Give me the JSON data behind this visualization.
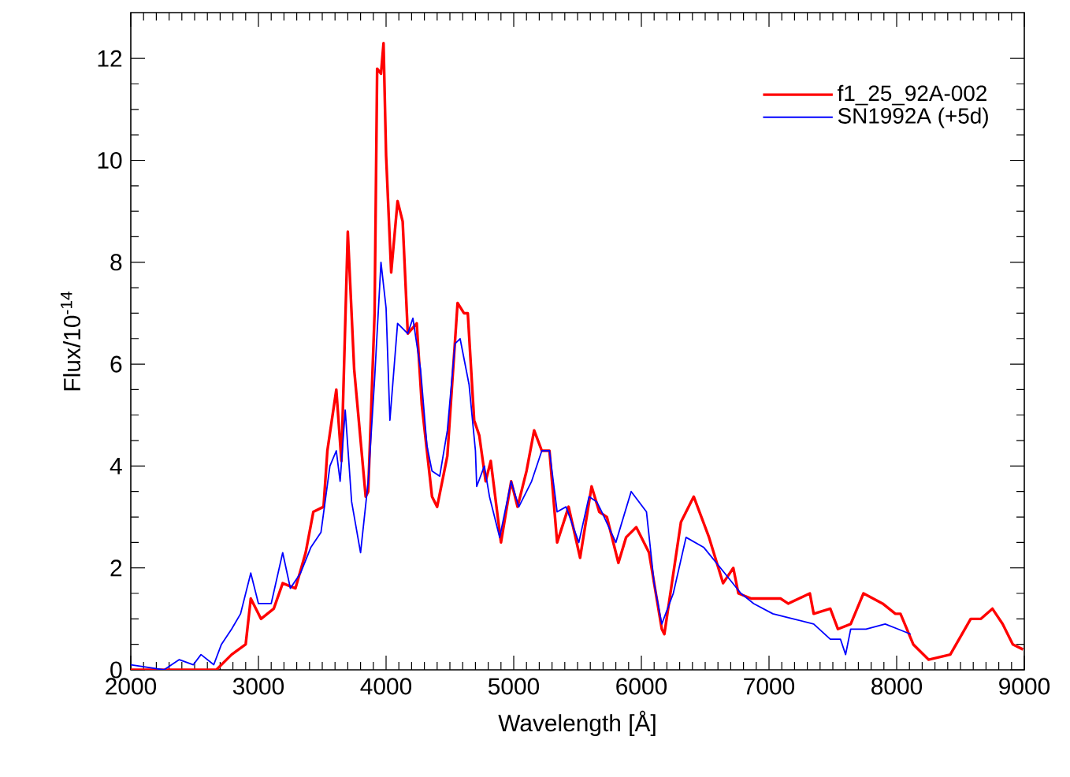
{
  "chart_data": {
    "type": "line",
    "xlabel": "Wavelength [Å]",
    "ylabel": "Flux/10$^{-14}$",
    "xlim": [
      2000,
      9000
    ],
    "ylim": [
      0,
      12.9
    ],
    "xticks": [
      2000,
      3000,
      4000,
      5000,
      6000,
      7000,
      8000,
      9000
    ],
    "yticks": [
      0,
      2,
      4,
      6,
      8,
      10,
      12
    ],
    "legend": "top right",
    "grid": false,
    "marker": "none",
    "line_style": "solid",
    "series": [
      {
        "name": "f1_25_92A-002",
        "color": "#ff0000",
        "x": [
          2000,
          2670,
          2790,
          2900,
          2940,
          3020,
          3120,
          3190,
          3290,
          3370,
          3430,
          3510,
          3540,
          3610,
          3650,
          3700,
          3750,
          3840,
          3860,
          3910,
          3930,
          3960,
          3980,
          4000,
          4040,
          4090,
          4130,
          4170,
          4240,
          4280,
          4360,
          4400,
          4480,
          4560,
          4610,
          4640,
          4690,
          4730,
          4780,
          4820,
          4900,
          4980,
          5030,
          5100,
          5160,
          5220,
          5280,
          5340,
          5430,
          5520,
          5610,
          5670,
          5730,
          5820,
          5880,
          5960,
          6060,
          6160,
          6180,
          6310,
          6410,
          6530,
          6640,
          6720,
          6760,
          6860,
          6980,
          7090,
          7150,
          7320,
          7350,
          7480,
          7540,
          7640,
          7740,
          7890,
          7990,
          8030,
          8130,
          8250,
          8420,
          8580,
          8660,
          8750,
          8830,
          8910,
          8990
        ],
        "values": [
          0.0,
          0.0,
          0.3,
          0.5,
          1.4,
          1.0,
          1.2,
          1.7,
          1.6,
          2.3,
          3.1,
          3.2,
          4.3,
          5.5,
          4.1,
          8.6,
          5.9,
          3.4,
          3.5,
          7.0,
          11.8,
          11.7,
          12.3,
          10.1,
          7.8,
          9.2,
          8.8,
          6.6,
          6.8,
          5.2,
          3.4,
          3.2,
          4.2,
          7.2,
          7.0,
          7.0,
          4.9,
          4.6,
          3.7,
          4.1,
          2.5,
          3.7,
          3.2,
          3.9,
          4.7,
          4.3,
          4.3,
          2.5,
          3.2,
          2.2,
          3.6,
          3.1,
          3.0,
          2.1,
          2.6,
          2.8,
          2.3,
          0.8,
          0.7,
          2.9,
          3.4,
          2.6,
          1.7,
          2.0,
          1.5,
          1.4,
          1.4,
          1.4,
          1.3,
          1.5,
          1.1,
          1.2,
          0.8,
          0.9,
          1.5,
          1.3,
          1.1,
          1.1,
          0.5,
          0.2,
          0.3,
          1.0,
          1.0,
          1.2,
          0.9,
          0.5,
          0.4
        ]
      },
      {
        "name": "SN1992A (+5d)",
        "color": "#0000ff",
        "x": [
          2000,
          2260,
          2380,
          2490,
          2550,
          2650,
          2710,
          2790,
          2860,
          2940,
          3000,
          3100,
          3190,
          3250,
          3330,
          3410,
          3490,
          3560,
          3610,
          3640,
          3680,
          3730,
          3800,
          3860,
          3910,
          3960,
          4000,
          4030,
          4090,
          4170,
          4210,
          4270,
          4320,
          4360,
          4420,
          4480,
          4540,
          4580,
          4650,
          4700,
          4710,
          4770,
          4810,
          4890,
          4980,
          5040,
          5140,
          5220,
          5280,
          5340,
          5410,
          5510,
          5590,
          5650,
          5690,
          5800,
          5920,
          6040,
          6100,
          6160,
          6250,
          6350,
          6490,
          6620,
          6780,
          6880,
          7030,
          7190,
          7350,
          7480,
          7560,
          7600,
          7640,
          7760,
          7910,
          8010,
          8110
        ],
        "values": [
          0.1,
          0.0,
          0.2,
          0.1,
          0.3,
          0.1,
          0.5,
          0.8,
          1.1,
          1.9,
          1.3,
          1.3,
          2.3,
          1.6,
          1.9,
          2.4,
          2.7,
          4.0,
          4.3,
          3.7,
          5.1,
          3.3,
          2.3,
          3.7,
          5.7,
          8.0,
          7.1,
          4.9,
          6.8,
          6.6,
          6.9,
          5.9,
          4.4,
          3.9,
          3.8,
          4.7,
          6.4,
          6.5,
          5.6,
          4.3,
          3.6,
          4.0,
          3.4,
          2.6,
          3.7,
          3.2,
          3.7,
          4.3,
          4.3,
          3.1,
          3.2,
          2.5,
          3.4,
          3.3,
          3.1,
          2.5,
          3.5,
          3.1,
          1.7,
          0.9,
          1.5,
          2.6,
          2.4,
          2.0,
          1.5,
          1.3,
          1.1,
          1.0,
          0.9,
          0.6,
          0.6,
          0.3,
          0.8,
          0.8,
          0.9,
          0.8,
          0.7
        ]
      }
    ]
  }
}
